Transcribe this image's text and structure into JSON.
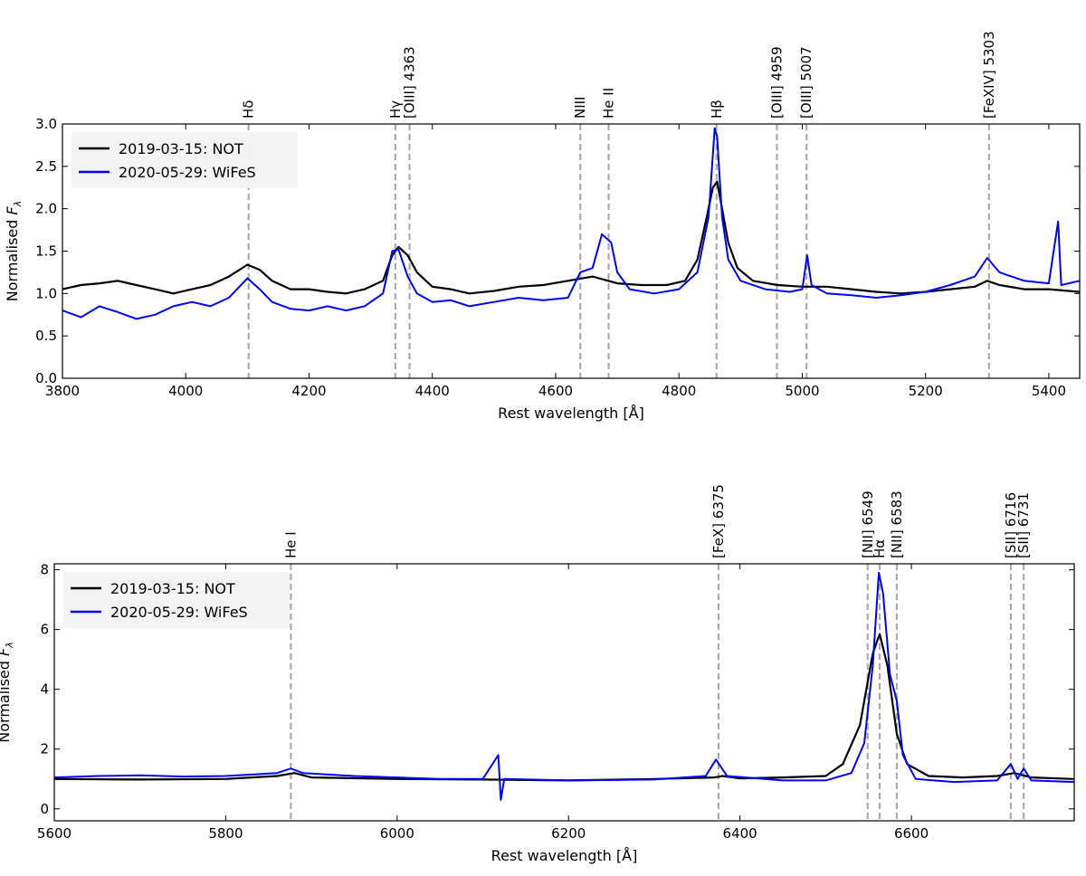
{
  "chart_data": [
    {
      "type": "line",
      "xlabel": "Rest wavelength [Å]",
      "ylabel_main": "Normalised ",
      "ylabel_italic": "F",
      "ylabel_sub": "λ",
      "xlim": [
        3800,
        5450
      ],
      "ylim": [
        0,
        3.0
      ],
      "xticks": [
        3800,
        4000,
        4200,
        4400,
        4600,
        4800,
        5000,
        5200,
        5400
      ],
      "yticks": [
        0.0,
        0.5,
        1.0,
        1.5,
        2.0,
        2.5,
        3.0
      ],
      "ytick_labels": [
        "0.0",
        "0.5",
        "1.0",
        "1.5",
        "2.0",
        "2.5",
        "3.0"
      ],
      "grid": false,
      "legend_position": "top-left",
      "lines": [
        {
          "x": 4102,
          "label": "Hδ"
        },
        {
          "x": 4340,
          "label": "Hγ"
        },
        {
          "x": 4363,
          "label": "[OIII] 4363"
        },
        {
          "x": 4640,
          "label": "NIII"
        },
        {
          "x": 4686,
          "label": "He II"
        },
        {
          "x": 4861,
          "label": "Hβ"
        },
        {
          "x": 4959,
          "label": "[OIII] 4959"
        },
        {
          "x": 5007,
          "label": "[OIII] 5007"
        },
        {
          "x": 5303,
          "label": "[FeXIV] 5303"
        }
      ],
      "series": [
        {
          "name": "2019-03-15: NOT",
          "color": "#000000",
          "points": [
            [
              3800,
              1.05
            ],
            [
              3830,
              1.1
            ],
            [
              3860,
              1.12
            ],
            [
              3890,
              1.15
            ],
            [
              3920,
              1.1
            ],
            [
              3950,
              1.05
            ],
            [
              3980,
              1.0
            ],
            [
              4010,
              1.05
            ],
            [
              4040,
              1.1
            ],
            [
              4070,
              1.2
            ],
            [
              4100,
              1.34
            ],
            [
              4120,
              1.28
            ],
            [
              4140,
              1.15
            ],
            [
              4170,
              1.05
            ],
            [
              4200,
              1.05
            ],
            [
              4230,
              1.02
            ],
            [
              4260,
              1.0
            ],
            [
              4290,
              1.05
            ],
            [
              4320,
              1.15
            ],
            [
              4335,
              1.45
            ],
            [
              4345,
              1.55
            ],
            [
              4360,
              1.45
            ],
            [
              4375,
              1.25
            ],
            [
              4400,
              1.08
            ],
            [
              4430,
              1.05
            ],
            [
              4460,
              1.0
            ],
            [
              4500,
              1.03
            ],
            [
              4540,
              1.08
            ],
            [
              4580,
              1.1
            ],
            [
              4620,
              1.15
            ],
            [
              4660,
              1.2
            ],
            [
              4700,
              1.12
            ],
            [
              4740,
              1.1
            ],
            [
              4780,
              1.1
            ],
            [
              4810,
              1.15
            ],
            [
              4830,
              1.4
            ],
            [
              4845,
              1.9
            ],
            [
              4855,
              2.25
            ],
            [
              4862,
              2.32
            ],
            [
              4870,
              2.0
            ],
            [
              4880,
              1.6
            ],
            [
              4895,
              1.3
            ],
            [
              4920,
              1.15
            ],
            [
              4960,
              1.1
            ],
            [
              5000,
              1.08
            ],
            [
              5040,
              1.08
            ],
            [
              5080,
              1.05
            ],
            [
              5120,
              1.02
            ],
            [
              5160,
              1.0
            ],
            [
              5200,
              1.02
            ],
            [
              5240,
              1.05
            ],
            [
              5280,
              1.08
            ],
            [
              5300,
              1.15
            ],
            [
              5320,
              1.1
            ],
            [
              5360,
              1.05
            ],
            [
              5400,
              1.05
            ],
            [
              5450,
              1.02
            ]
          ]
        },
        {
          "name": "2020-05-29: WiFeS",
          "color": "#0000ff",
          "points": [
            [
              3800,
              0.8
            ],
            [
              3830,
              0.72
            ],
            [
              3860,
              0.85
            ],
            [
              3890,
              0.78
            ],
            [
              3920,
              0.7
            ],
            [
              3950,
              0.75
            ],
            [
              3980,
              0.85
            ],
            [
              4010,
              0.9
            ],
            [
              4040,
              0.85
            ],
            [
              4070,
              0.95
            ],
            [
              4100,
              1.18
            ],
            [
              4120,
              1.05
            ],
            [
              4140,
              0.9
            ],
            [
              4170,
              0.82
            ],
            [
              4200,
              0.8
            ],
            [
              4230,
              0.85
            ],
            [
              4260,
              0.8
            ],
            [
              4290,
              0.85
            ],
            [
              4320,
              1.0
            ],
            [
              4335,
              1.5
            ],
            [
              4345,
              1.52
            ],
            [
              4360,
              1.2
            ],
            [
              4375,
              1.0
            ],
            [
              4400,
              0.9
            ],
            [
              4430,
              0.92
            ],
            [
              4460,
              0.85
            ],
            [
              4500,
              0.9
            ],
            [
              4540,
              0.95
            ],
            [
              4580,
              0.92
            ],
            [
              4620,
              0.95
            ],
            [
              4640,
              1.25
            ],
            [
              4660,
              1.3
            ],
            [
              4675,
              1.7
            ],
            [
              4690,
              1.6
            ],
            [
              4700,
              1.25
            ],
            [
              4720,
              1.05
            ],
            [
              4760,
              1.0
            ],
            [
              4800,
              1.05
            ],
            [
              4830,
              1.25
            ],
            [
              4848,
              1.9
            ],
            [
              4858,
              2.95
            ],
            [
              4862,
              2.85
            ],
            [
              4870,
              1.9
            ],
            [
              4880,
              1.4
            ],
            [
              4900,
              1.15
            ],
            [
              4940,
              1.05
            ],
            [
              4980,
              1.02
            ],
            [
              5000,
              1.05
            ],
            [
              5008,
              1.45
            ],
            [
              5015,
              1.1
            ],
            [
              5040,
              1.0
            ],
            [
              5080,
              0.98
            ],
            [
              5120,
              0.95
            ],
            [
              5160,
              0.98
            ],
            [
              5200,
              1.02
            ],
            [
              5240,
              1.1
            ],
            [
              5280,
              1.2
            ],
            [
              5300,
              1.42
            ],
            [
              5320,
              1.25
            ],
            [
              5360,
              1.15
            ],
            [
              5400,
              1.12
            ],
            [
              5415,
              1.85
            ],
            [
              5420,
              1.1
            ],
            [
              5450,
              1.15
            ]
          ]
        }
      ]
    },
    {
      "type": "line",
      "xlabel": "Rest wavelength [Å]",
      "ylabel_main": "Normalised ",
      "ylabel_italic": "F",
      "ylabel_sub": "λ",
      "xlim": [
        5600,
        6790
      ],
      "ylim": [
        -0.4,
        8.2
      ],
      "xticks": [
        5600,
        5800,
        6000,
        6200,
        6400,
        6600
      ],
      "yticks": [
        0,
        2,
        4,
        6,
        8
      ],
      "ytick_labels": [
        "0",
        "2",
        "4",
        "6",
        "8"
      ],
      "grid": false,
      "legend_position": "top-left",
      "lines": [
        {
          "x": 5876,
          "label": "He I"
        },
        {
          "x": 6375,
          "label": "[FeX] 6375"
        },
        {
          "x": 6549,
          "label": "[NII] 6549"
        },
        {
          "x": 6563,
          "label": "Hα"
        },
        {
          "x": 6583,
          "label": "[NII] 6583"
        },
        {
          "x": 6716,
          "label": "[SII] 6716"
        },
        {
          "x": 6731,
          "label": "[SII] 6731"
        }
      ],
      "series": [
        {
          "name": "2019-03-15: NOT",
          "color": "#000000",
          "points": [
            [
              5600,
              1.0
            ],
            [
              5700,
              0.98
            ],
            [
              5800,
              1.0
            ],
            [
              5860,
              1.1
            ],
            [
              5880,
              1.2
            ],
            [
              5900,
              1.05
            ],
            [
              6000,
              1.0
            ],
            [
              6100,
              0.98
            ],
            [
              6200,
              0.95
            ],
            [
              6300,
              1.0
            ],
            [
              6370,
              1.05
            ],
            [
              6380,
              1.1
            ],
            [
              6400,
              1.02
            ],
            [
              6450,
              1.05
            ],
            [
              6500,
              1.1
            ],
            [
              6520,
              1.5
            ],
            [
              6540,
              2.8
            ],
            [
              6555,
              5.2
            ],
            [
              6563,
              5.85
            ],
            [
              6572,
              4.8
            ],
            [
              6583,
              2.5
            ],
            [
              6595,
              1.5
            ],
            [
              6620,
              1.1
            ],
            [
              6660,
              1.05
            ],
            [
              6700,
              1.1
            ],
            [
              6720,
              1.2
            ],
            [
              6740,
              1.05
            ],
            [
              6790,
              1.0
            ]
          ]
        },
        {
          "name": "2020-05-29: WiFeS",
          "color": "#0000ff",
          "points": [
            [
              5600,
              1.05
            ],
            [
              5650,
              1.1
            ],
            [
              5700,
              1.12
            ],
            [
              5750,
              1.08
            ],
            [
              5800,
              1.1
            ],
            [
              5860,
              1.2
            ],
            [
              5876,
              1.35
            ],
            [
              5890,
              1.2
            ],
            [
              5950,
              1.1
            ],
            [
              6000,
              1.05
            ],
            [
              6050,
              1.0
            ],
            [
              6100,
              1.0
            ],
            [
              6118,
              1.8
            ],
            [
              6121,
              0.3
            ],
            [
              6125,
              1.0
            ],
            [
              6200,
              0.95
            ],
            [
              6300,
              0.98
            ],
            [
              6360,
              1.1
            ],
            [
              6372,
              1.65
            ],
            [
              6385,
              1.1
            ],
            [
              6450,
              0.95
            ],
            [
              6500,
              0.95
            ],
            [
              6530,
              1.2
            ],
            [
              6545,
              2.2
            ],
            [
              6555,
              4.8
            ],
            [
              6562,
              7.9
            ],
            [
              6567,
              7.2
            ],
            [
              6575,
              4.5
            ],
            [
              6583,
              3.6
            ],
            [
              6590,
              1.8
            ],
            [
              6605,
              1.0
            ],
            [
              6650,
              0.9
            ],
            [
              6700,
              0.95
            ],
            [
              6716,
              1.5
            ],
            [
              6724,
              1.0
            ],
            [
              6731,
              1.35
            ],
            [
              6740,
              0.95
            ],
            [
              6790,
              0.9
            ]
          ]
        }
      ]
    }
  ]
}
